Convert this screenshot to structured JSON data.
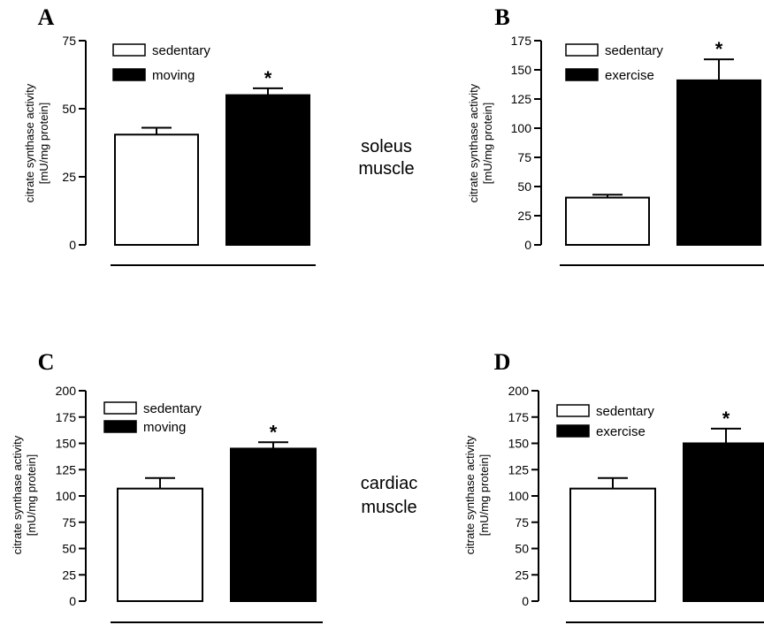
{
  "tissue_labels": {
    "top": [
      "soleus",
      "muscle"
    ],
    "bottom": [
      "cardiac",
      "muscle"
    ]
  },
  "colors": {
    "control": "#ffffff",
    "treated": "#000000",
    "stroke": "#000000"
  },
  "chart_data": [
    {
      "type": "bar",
      "panel": "A",
      "ylabel": [
        "citrate synthase activity",
        "[mU/mg protein]"
      ],
      "ylim": [
        0,
        75
      ],
      "yticks": [
        0,
        25,
        50,
        75
      ],
      "categories": [
        "sedentary",
        "moving"
      ],
      "values": [
        40.5,
        55
      ],
      "errors": [
        2.5,
        2.5
      ],
      "significance": [
        "",
        "*"
      ],
      "legend": [
        {
          "label": "sedentary",
          "fill": "white"
        },
        {
          "label": "moving",
          "fill": "black"
        }
      ]
    },
    {
      "type": "bar",
      "panel": "B",
      "ylabel": [
        "citrate synthase activity",
        "[mU/mg protein]"
      ],
      "ylim": [
        0,
        175
      ],
      "yticks": [
        0,
        25,
        50,
        75,
        100,
        125,
        150,
        175
      ],
      "categories": [
        "sedentary",
        "exercise"
      ],
      "values": [
        40.5,
        141
      ],
      "errors": [
        2.5,
        18
      ],
      "significance": [
        "",
        "*"
      ],
      "legend": [
        {
          "label": "sedentary",
          "fill": "white"
        },
        {
          "label": "exercise",
          "fill": "black"
        }
      ]
    },
    {
      "type": "bar",
      "panel": "C",
      "ylabel": [
        "citrate synthase activity",
        "[mU/mg protein]"
      ],
      "ylim": [
        0,
        200
      ],
      "yticks": [
        0,
        25,
        50,
        75,
        100,
        125,
        150,
        175,
        200
      ],
      "categories": [
        "sedentary",
        "moving"
      ],
      "values": [
        107,
        145
      ],
      "errors": [
        10,
        6
      ],
      "significance": [
        "",
        "*"
      ],
      "legend": [
        {
          "label": "sedentary",
          "fill": "white"
        },
        {
          "label": "moving",
          "fill": "black"
        }
      ]
    },
    {
      "type": "bar",
      "panel": "D",
      "ylabel": [
        "citrate synthase activity",
        "[mU/mg protein]"
      ],
      "ylim": [
        0,
        200
      ],
      "yticks": [
        0,
        25,
        50,
        75,
        100,
        125,
        150,
        175,
        200
      ],
      "categories": [
        "sedentary",
        "exercise"
      ],
      "values": [
        107,
        150
      ],
      "errors": [
        10,
        14
      ],
      "significance": [
        "",
        "*"
      ],
      "legend": [
        {
          "label": "sedentary",
          "fill": "white"
        },
        {
          "label": "exercise",
          "fill": "black"
        }
      ]
    }
  ]
}
